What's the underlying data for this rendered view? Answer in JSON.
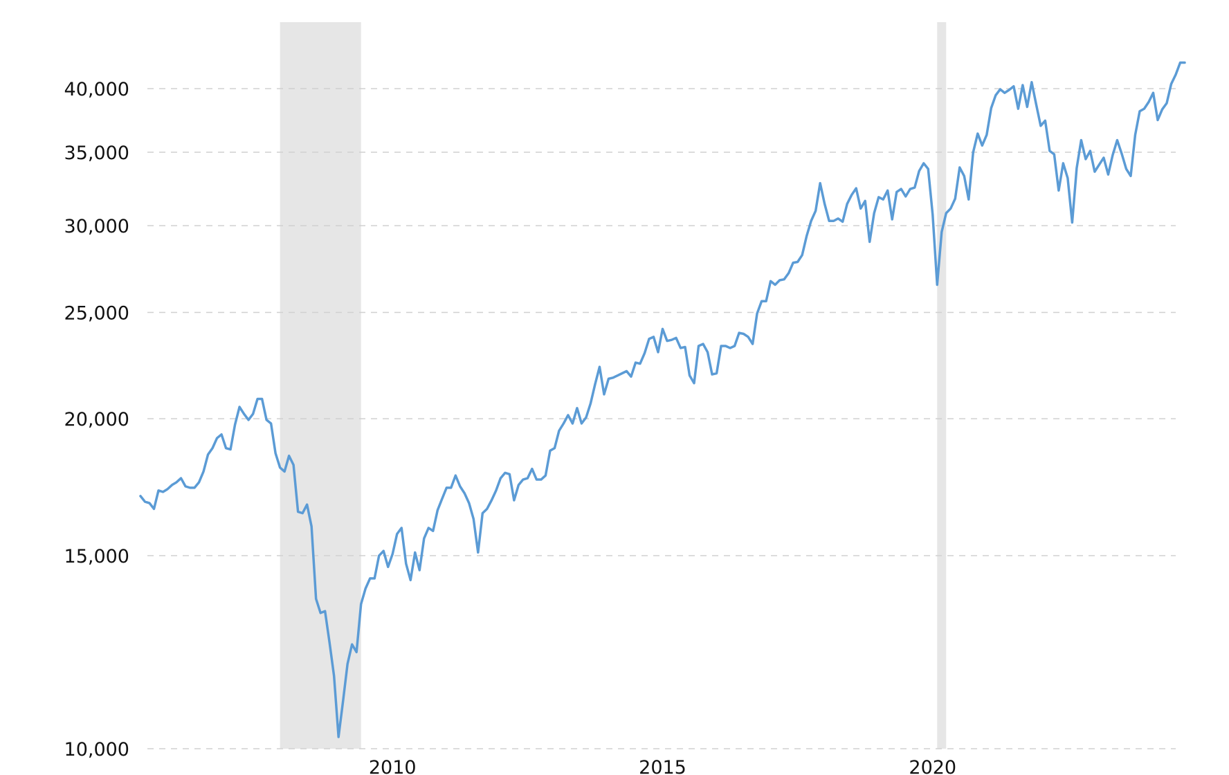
{
  "chart_data": {
    "type": "line",
    "title": "",
    "xlabel": "",
    "ylabel": "",
    "y_scale": "log",
    "ylim": [
      10000,
      46000
    ],
    "xlim": [
      "2005-05",
      "2024-07"
    ],
    "grid": "horizontal dashed",
    "legend": "none",
    "y_ticks": [
      {
        "value": 10000,
        "label": "10,000"
      },
      {
        "value": 15000,
        "label": "15,000"
      },
      {
        "value": 20000,
        "label": "20,000"
      },
      {
        "value": 25000,
        "label": "25,000"
      },
      {
        "value": 30000,
        "label": "30,000"
      },
      {
        "value": 35000,
        "label": "35,000"
      },
      {
        "value": 40000,
        "label": "40,000"
      }
    ],
    "x_ticks": [
      {
        "value": "2010-01",
        "label": "2010"
      },
      {
        "value": "2015-01",
        "label": "2015"
      },
      {
        "value": "2020-01",
        "label": "2020"
      }
    ],
    "shaded_regions": [
      {
        "start": "2007-12",
        "end": "2009-06"
      },
      {
        "start": "2020-02",
        "end": "2020-04"
      }
    ],
    "colors": {
      "line": "#5b9bd5",
      "recession": "#e6e6e6",
      "grid": "#d0d0d0"
    },
    "series": [
      {
        "points": [
          [
            "2005-05",
            17000
          ],
          [
            "2005-06",
            16800
          ],
          [
            "2005-07",
            16750
          ],
          [
            "2005-08",
            16550
          ],
          [
            "2005-09",
            17200
          ],
          [
            "2005-10",
            17150
          ],
          [
            "2005-11",
            17250
          ],
          [
            "2005-12",
            17400
          ],
          [
            "2006-01",
            17500
          ],
          [
            "2006-02",
            17650
          ],
          [
            "2006-03",
            17350
          ],
          [
            "2006-04",
            17300
          ],
          [
            "2006-05",
            17300
          ],
          [
            "2006-06",
            17500
          ],
          [
            "2006-07",
            17900
          ],
          [
            "2006-08",
            18550
          ],
          [
            "2006-09",
            18800
          ],
          [
            "2006-10",
            19200
          ],
          [
            "2006-11",
            19350
          ],
          [
            "2006-12",
            18800
          ],
          [
            "2007-01",
            18750
          ],
          [
            "2007-02",
            19750
          ],
          [
            "2007-03",
            20500
          ],
          [
            "2007-04",
            20200
          ],
          [
            "2007-05",
            19950
          ],
          [
            "2007-06",
            20200
          ],
          [
            "2007-07",
            20850
          ],
          [
            "2007-08",
            20850
          ],
          [
            "2007-09",
            19950
          ],
          [
            "2007-10",
            19800
          ],
          [
            "2007-11",
            18600
          ],
          [
            "2007-12",
            18050
          ],
          [
            "2008-01",
            17900
          ],
          [
            "2008-02",
            18500
          ],
          [
            "2008-03",
            18150
          ],
          [
            "2008-04",
            16450
          ],
          [
            "2008-05",
            16400
          ],
          [
            "2008-06",
            16700
          ],
          [
            "2008-07",
            15950
          ],
          [
            "2008-08",
            13700
          ],
          [
            "2008-09",
            13300
          ],
          [
            "2008-10",
            13350
          ],
          [
            "2008-11",
            12500
          ],
          [
            "2008-12",
            11650
          ],
          [
            "2009-01",
            10250
          ],
          [
            "2009-02",
            11050
          ],
          [
            "2009-03",
            11950
          ],
          [
            "2009-04",
            12450
          ],
          [
            "2009-05",
            12250
          ],
          [
            "2009-06",
            13550
          ],
          [
            "2009-07",
            14000
          ],
          [
            "2009-08",
            14300
          ],
          [
            "2009-09",
            14300
          ],
          [
            "2009-10",
            15000
          ],
          [
            "2009-11",
            15150
          ],
          [
            "2009-12",
            14650
          ],
          [
            "2010-01",
            15050
          ],
          [
            "2010-02",
            15700
          ],
          [
            "2010-03",
            15900
          ],
          [
            "2010-04",
            14750
          ],
          [
            "2010-05",
            14250
          ],
          [
            "2010-06",
            15100
          ],
          [
            "2010-07",
            14550
          ],
          [
            "2010-08",
            15550
          ],
          [
            "2010-09",
            15900
          ],
          [
            "2010-10",
            15800
          ],
          [
            "2010-11",
            16500
          ],
          [
            "2010-12",
            16900
          ],
          [
            "2011-01",
            17300
          ],
          [
            "2011-02",
            17300
          ],
          [
            "2011-03",
            17750
          ],
          [
            "2011-04",
            17350
          ],
          [
            "2011-05",
            17100
          ],
          [
            "2011-06",
            16750
          ],
          [
            "2011-07",
            16200
          ],
          [
            "2011-08",
            15100
          ],
          [
            "2011-09",
            16400
          ],
          [
            "2011-10",
            16550
          ],
          [
            "2011-11",
            16850
          ],
          [
            "2011-12",
            17200
          ],
          [
            "2012-01",
            17650
          ],
          [
            "2012-02",
            17850
          ],
          [
            "2012-03",
            17800
          ],
          [
            "2012-04",
            16850
          ],
          [
            "2012-05",
            17400
          ],
          [
            "2012-06",
            17600
          ],
          [
            "2012-07",
            17650
          ],
          [
            "2012-08",
            18000
          ],
          [
            "2012-09",
            17600
          ],
          [
            "2012-10",
            17600
          ],
          [
            "2012-11",
            17750
          ],
          [
            "2012-12",
            18700
          ],
          [
            "2013-01",
            18800
          ],
          [
            "2013-02",
            19500
          ],
          [
            "2013-03",
            19800
          ],
          [
            "2013-04",
            20150
          ],
          [
            "2013-05",
            19800
          ],
          [
            "2013-06",
            20450
          ],
          [
            "2013-07",
            19800
          ],
          [
            "2013-08",
            20050
          ],
          [
            "2013-09",
            20650
          ],
          [
            "2013-10",
            21500
          ],
          [
            "2013-11",
            22300
          ],
          [
            "2013-12",
            21050
          ],
          [
            "2014-01",
            21750
          ],
          [
            "2014-02",
            21800
          ],
          [
            "2014-03",
            21900
          ],
          [
            "2014-04",
            22000
          ],
          [
            "2014-05",
            22100
          ],
          [
            "2014-06",
            21850
          ],
          [
            "2014-07",
            22500
          ],
          [
            "2014-08",
            22450
          ],
          [
            "2014-09",
            22950
          ],
          [
            "2014-10",
            23650
          ],
          [
            "2014-11",
            23750
          ],
          [
            "2014-12",
            23000
          ],
          [
            "2015-01",
            24150
          ],
          [
            "2015-02",
            23550
          ],
          [
            "2015-03",
            23600
          ],
          [
            "2015-04",
            23700
          ],
          [
            "2015-05",
            23200
          ],
          [
            "2015-06",
            23250
          ],
          [
            "2015-07",
            21900
          ],
          [
            "2015-08",
            21550
          ],
          [
            "2015-09",
            23300
          ],
          [
            "2015-10",
            23400
          ],
          [
            "2015-11",
            23000
          ],
          [
            "2015-12",
            21950
          ],
          [
            "2016-01",
            22000
          ],
          [
            "2016-02",
            23300
          ],
          [
            "2016-03",
            23300
          ],
          [
            "2016-04",
            23200
          ],
          [
            "2016-05",
            23300
          ],
          [
            "2016-06",
            23950
          ],
          [
            "2016-07",
            23900
          ],
          [
            "2016-08",
            23750
          ],
          [
            "2016-09",
            23400
          ],
          [
            "2016-10",
            24950
          ],
          [
            "2016-11",
            25600
          ],
          [
            "2016-12",
            25600
          ],
          [
            "2017-01",
            26700
          ],
          [
            "2017-02",
            26500
          ],
          [
            "2017-03",
            26750
          ],
          [
            "2017-04",
            26800
          ],
          [
            "2017-05",
            27150
          ],
          [
            "2017-06",
            27750
          ],
          [
            "2017-07",
            27800
          ],
          [
            "2017-08",
            28200
          ],
          [
            "2017-09",
            29350
          ],
          [
            "2017-10",
            30300
          ],
          [
            "2017-11",
            30950
          ],
          [
            "2017-12",
            32800
          ],
          [
            "2018-01",
            31400
          ],
          [
            "2018-02",
            30300
          ],
          [
            "2018-03",
            30300
          ],
          [
            "2018-04",
            30450
          ],
          [
            "2018-05",
            30250
          ],
          [
            "2018-06",
            31400
          ],
          [
            "2018-07",
            32000
          ],
          [
            "2018-08",
            32450
          ],
          [
            "2018-09",
            31100
          ],
          [
            "2018-10",
            31600
          ],
          [
            "2018-11",
            29000
          ],
          [
            "2018-12",
            30800
          ],
          [
            "2019-01",
            31850
          ],
          [
            "2019-02",
            31700
          ],
          [
            "2019-03",
            32300
          ],
          [
            "2019-04",
            30400
          ],
          [
            "2019-05",
            32200
          ],
          [
            "2019-06",
            32400
          ],
          [
            "2019-07",
            31900
          ],
          [
            "2019-08",
            32400
          ],
          [
            "2019-09",
            32500
          ],
          [
            "2019-10",
            33650
          ],
          [
            "2019-11",
            34200
          ],
          [
            "2019-12",
            33800
          ],
          [
            "2020-01",
            30700
          ],
          [
            "2020-02",
            26500
          ],
          [
            "2020-03",
            29600
          ],
          [
            "2020-04",
            30800
          ],
          [
            "2020-05",
            31100
          ],
          [
            "2020-06",
            31750
          ],
          [
            "2020-07",
            33900
          ],
          [
            "2020-08",
            33300
          ],
          [
            "2020-09",
            31700
          ],
          [
            "2020-10",
            35000
          ],
          [
            "2020-11",
            36400
          ],
          [
            "2020-12",
            35500
          ],
          [
            "2021-01",
            36300
          ],
          [
            "2021-02",
            38400
          ],
          [
            "2021-03",
            39450
          ],
          [
            "2021-04",
            39950
          ],
          [
            "2021-05",
            39650
          ],
          [
            "2021-06",
            39900
          ],
          [
            "2021-07",
            40200
          ],
          [
            "2021-08",
            38350
          ],
          [
            "2021-09",
            40300
          ],
          [
            "2021-10",
            38500
          ],
          [
            "2021-11",
            40550
          ],
          [
            "2021-12",
            38700
          ],
          [
            "2022-01",
            37000
          ],
          [
            "2022-02",
            37400
          ],
          [
            "2022-03",
            35100
          ],
          [
            "2022-04",
            34850
          ],
          [
            "2022-05",
            32300
          ],
          [
            "2022-06",
            34200
          ],
          [
            "2022-07",
            33150
          ],
          [
            "2022-08",
            30200
          ],
          [
            "2022-09",
            33850
          ],
          [
            "2022-10",
            35900
          ],
          [
            "2022-11",
            34500
          ],
          [
            "2022-12",
            35100
          ],
          [
            "2023-01",
            33600
          ],
          [
            "2023-02",
            34100
          ],
          [
            "2023-03",
            34600
          ],
          [
            "2023-04",
            33400
          ],
          [
            "2023-05",
            34800
          ],
          [
            "2023-06",
            35900
          ],
          [
            "2023-07",
            34900
          ],
          [
            "2023-08",
            33800
          ],
          [
            "2023-09",
            33300
          ],
          [
            "2023-10",
            36300
          ],
          [
            "2023-11",
            38150
          ],
          [
            "2023-12",
            38350
          ],
          [
            "2024-01",
            38900
          ],
          [
            "2024-02",
            39650
          ],
          [
            "2024-03",
            37450
          ],
          [
            "2024-04",
            38300
          ],
          [
            "2024-05",
            38800
          ],
          [
            "2024-06",
            40400
          ],
          [
            "2024-07",
            41200
          ],
          [
            "2024-08",
            42250
          ],
          [
            "2024-09",
            42250
          ]
        ]
      }
    ]
  }
}
